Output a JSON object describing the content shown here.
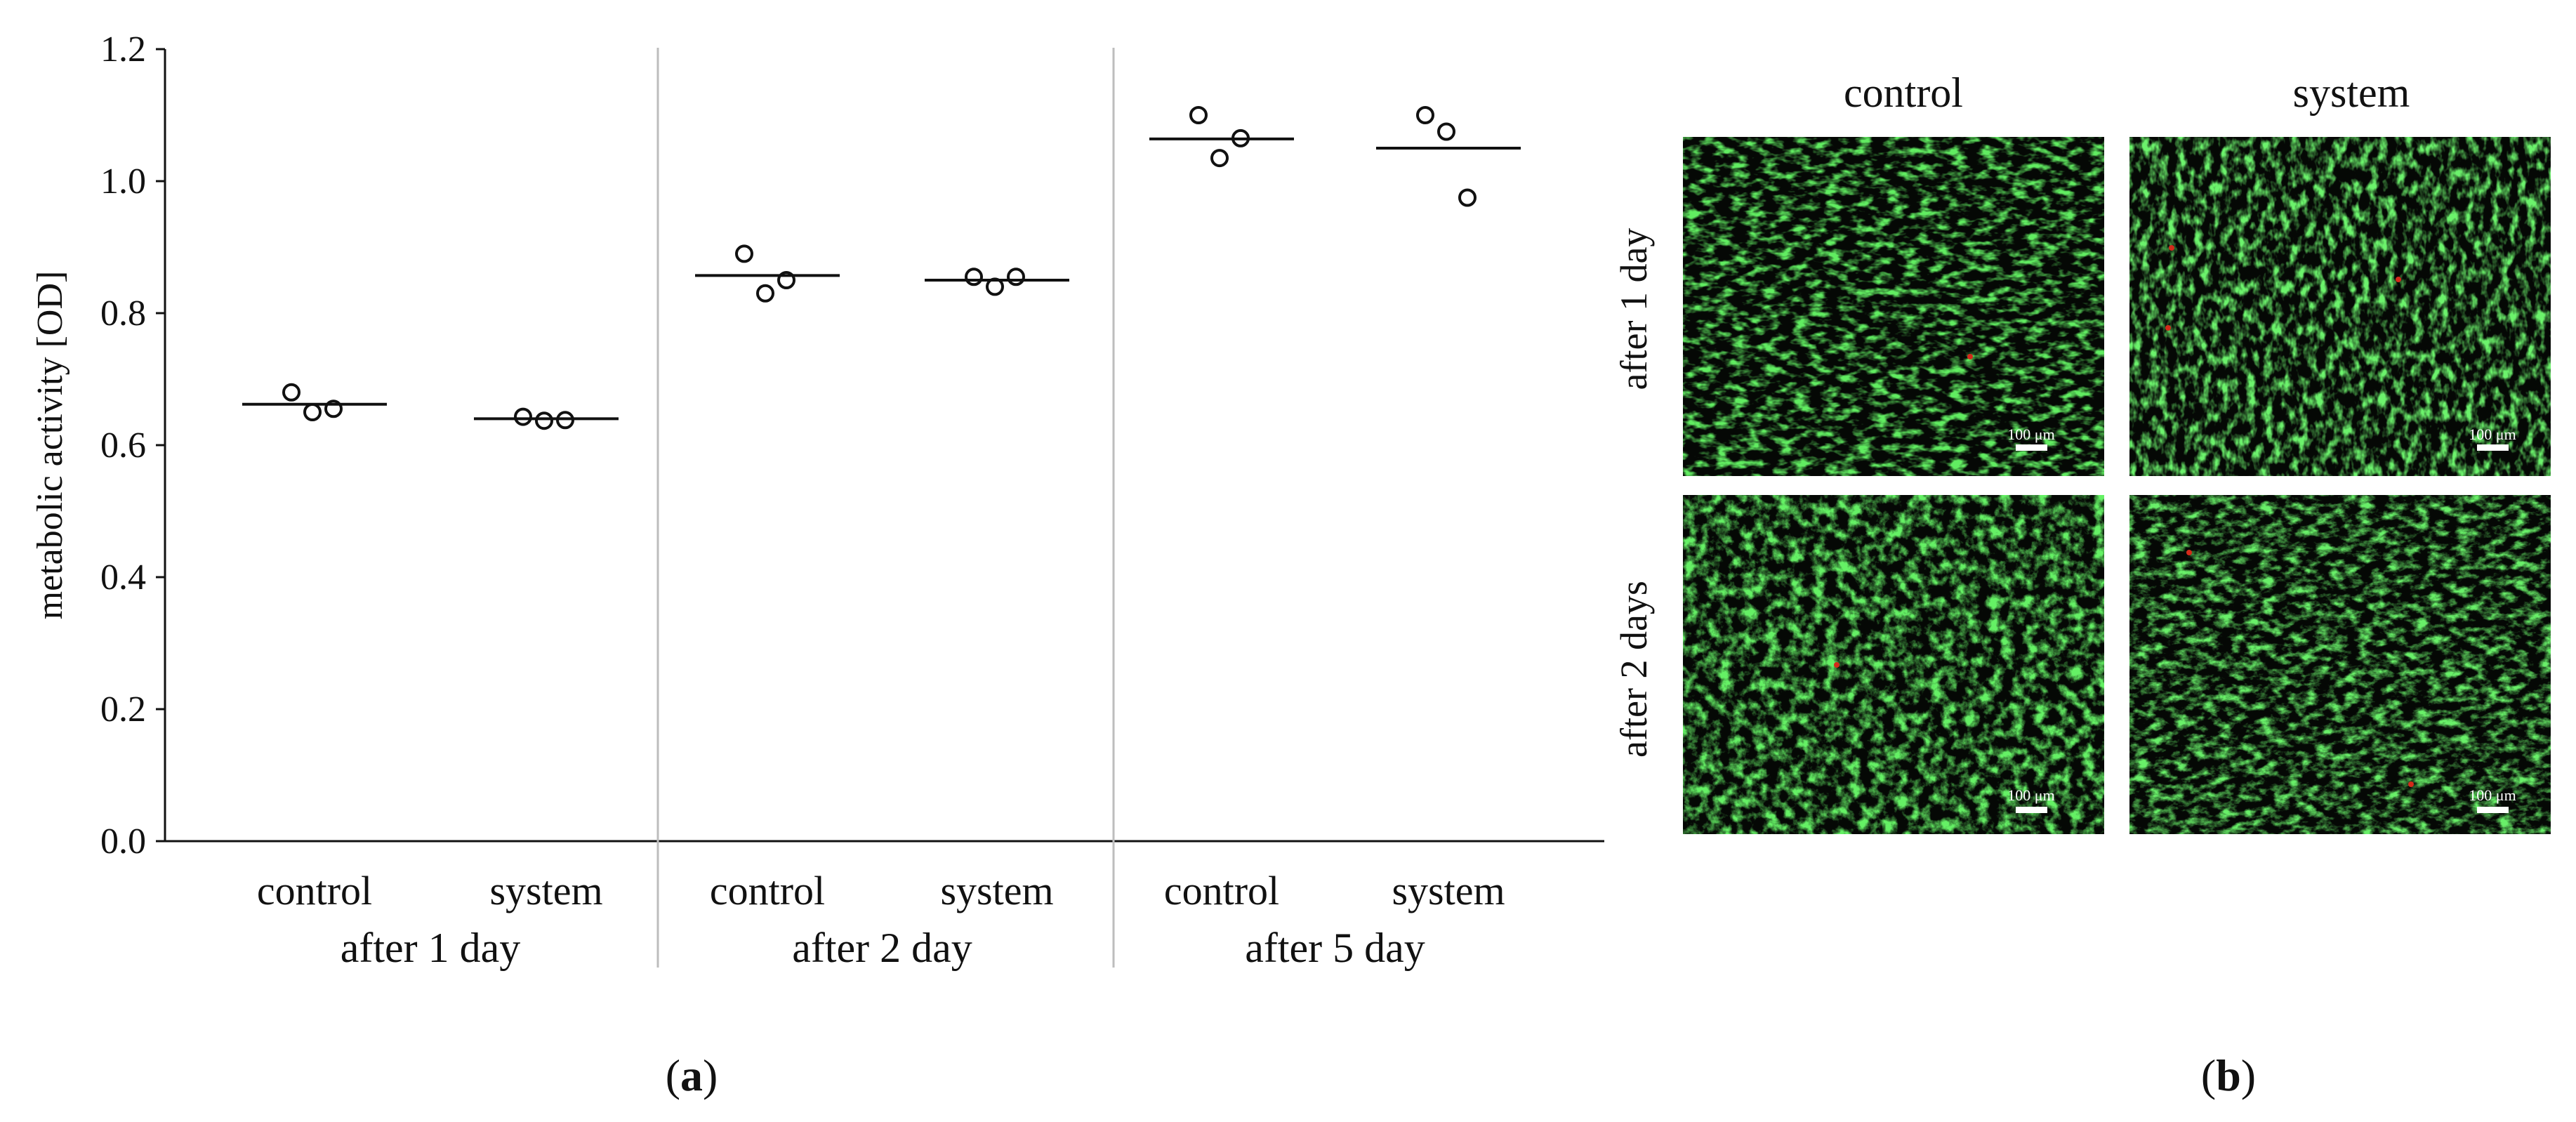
{
  "panels": {
    "a": {
      "label_open": "(",
      "label_letter": "a",
      "label_close": ")"
    },
    "b": {
      "label_open": "(",
      "label_letter": "b",
      "label_close": ")"
    }
  },
  "chart_data": {
    "type": "scatter",
    "ylabel": "metabolic activity [OD]",
    "ylim": [
      0,
      1.2
    ],
    "yticks": [
      "0.0",
      "0.2",
      "0.4",
      "0.6",
      "0.8",
      "1.0",
      "1.2"
    ],
    "groups": [
      {
        "label": "after 1 day",
        "conditions": [
          {
            "label": "control",
            "mean": 0.662,
            "points": [
              0.68,
              0.65,
              0.655
            ]
          },
          {
            "label": "system",
            "mean": 0.64,
            "points": [
              0.643,
              0.637,
              0.638
            ]
          }
        ]
      },
      {
        "label": "after 2 day",
        "conditions": [
          {
            "label": "control",
            "mean": 0.857,
            "points": [
              0.89,
              0.83,
              0.85
            ]
          },
          {
            "label": "system",
            "mean": 0.85,
            "points": [
              0.855,
              0.84,
              0.855
            ]
          }
        ]
      },
      {
        "label": "after 5 day",
        "conditions": [
          {
            "label": "control",
            "mean": 1.064,
            "points": [
              1.1,
              1.035,
              1.065
            ]
          },
          {
            "label": "system",
            "mean": 1.05,
            "points": [
              1.1,
              1.075,
              0.975
            ]
          }
        ]
      }
    ],
    "grid": false,
    "marker": "open-circle",
    "mean_marker": "horizontal-line",
    "colors": {
      "marker": "#111111",
      "separator": "#bdbdbd",
      "axis": "#111111"
    }
  },
  "micrographs": {
    "columns": [
      "control",
      "system"
    ],
    "rows": [
      "after 1 day",
      "after 2 days"
    ],
    "scale_bar_label": "100 μm",
    "colors": {
      "background": "#050805",
      "cells": "#2fbf2f",
      "dead": "#d42a1a"
    }
  }
}
